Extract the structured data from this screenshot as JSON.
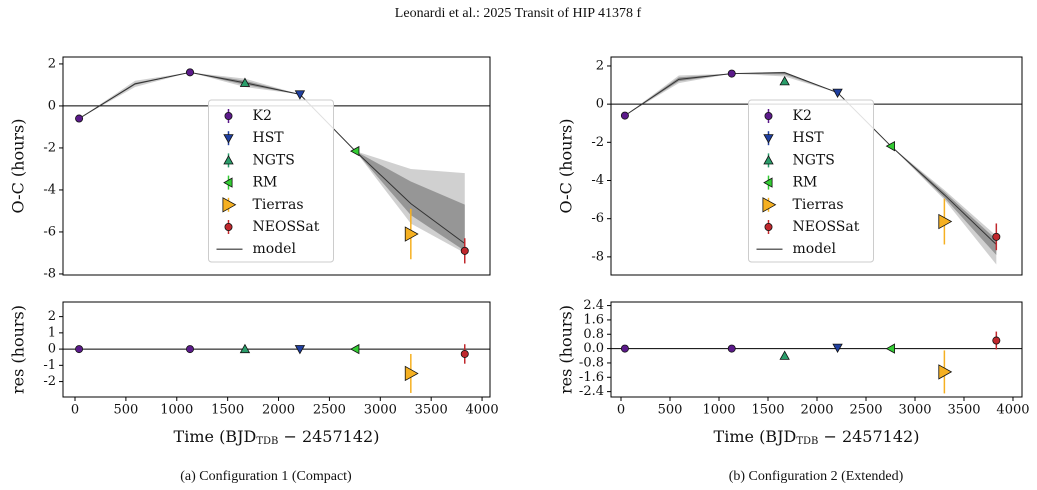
{
  "header": {
    "title": "Leonardi et al.: 2025 Transit of HIP 41378 f"
  },
  "captions": [
    "(a) Configuration 1 (Compact)",
    "(b) Configuration 2 (Extended)"
  ],
  "chart_data": [
    {
      "type": "scatter",
      "ylabel": "O-C (hours)",
      "xlim": [
        -118,
        4078
      ],
      "ylim": [
        -8.05,
        2.33
      ],
      "yticks": [
        -8,
        -6,
        -4,
        -2,
        0,
        2
      ],
      "hline": 0,
      "legend": "center",
      "bands": [
        {
          "color": "#c8c8c8",
          "x": [
            40,
            590,
            1130,
            1670,
            2210,
            2755,
            3300,
            3830
          ],
          "lower": [
            -0.6,
            0.9,
            1.6,
            0.9,
            0.55,
            -2.15,
            -5.6,
            -7.0
          ],
          "upper": [
            -0.6,
            1.2,
            1.6,
            1.3,
            0.55,
            -2.15,
            -3.0,
            -3.2
          ]
        },
        {
          "color": "#8c8c8c",
          "x": [
            40,
            590,
            1130,
            1670,
            2210,
            2755,
            3300,
            3830
          ],
          "lower": [
            -0.6,
            1.0,
            1.6,
            1.0,
            0.55,
            -2.15,
            -5.2,
            -6.9
          ],
          "upper": [
            -0.6,
            1.1,
            1.6,
            1.2,
            0.55,
            -2.15,
            -3.6,
            -4.7
          ]
        }
      ],
      "model": {
        "name": "model",
        "color": "#333333",
        "x": [
          40,
          590,
          1130,
          1670,
          2210,
          2755,
          3300,
          3830
        ],
        "values": [
          -0.6,
          1.05,
          1.6,
          1.1,
          0.55,
          -2.15,
          -4.65,
          -6.55
        ]
      },
      "series": [
        {
          "name": "K2",
          "color": "#5b1a8a",
          "marker": "o",
          "x": [
            40,
            1130
          ],
          "values": [
            -0.6,
            1.6
          ],
          "errors": [
            0.05,
            0.05
          ]
        },
        {
          "name": "HST",
          "color": "#1f3fa0",
          "marker": "v",
          "x": [
            2210
          ],
          "values": [
            0.55
          ],
          "errors": [
            0.05
          ]
        },
        {
          "name": "NGTS",
          "color": "#2a9d6a",
          "marker": "^",
          "x": [
            1670
          ],
          "values": [
            1.1
          ],
          "errors": [
            0.05
          ]
        },
        {
          "name": "RM",
          "color": "#33cc33",
          "marker": "<",
          "x": [
            2755
          ],
          "values": [
            -2.15
          ],
          "errors": [
            0.05
          ]
        },
        {
          "name": "Tierras",
          "color": "#f5b021",
          "marker": ">",
          "x": [
            3300
          ],
          "values": [
            -6.1
          ],
          "errors": [
            1.2
          ]
        },
        {
          "name": "NEOSSat",
          "color": "#c0282d",
          "marker": "o",
          "x": [
            3830
          ],
          "values": [
            -6.9
          ],
          "errors": [
            0.6
          ]
        }
      ]
    },
    {
      "type": "scatter",
      "ylabel": "res (hours)",
      "xlabel": [
        "Time (BJD",
        "TDB",
        " − 2457142)"
      ],
      "xlim": [
        -118,
        4078
      ],
      "ylim": [
        -2.95,
        2.9
      ],
      "yticks": [
        -2,
        -1,
        0,
        1,
        2
      ],
      "xticks": [
        0,
        500,
        1000,
        1500,
        2000,
        2500,
        3000,
        3500,
        4000
      ],
      "hline": 0,
      "series": [
        {
          "color": "#5b1a8a",
          "marker": "o",
          "x": [
            40,
            1130
          ],
          "values": [
            0,
            0
          ],
          "errors": [
            0.05,
            0.05
          ]
        },
        {
          "color": "#1f3fa0",
          "marker": "v",
          "x": [
            2210
          ],
          "values": [
            0
          ],
          "errors": [
            0.05
          ]
        },
        {
          "color": "#2a9d6a",
          "marker": "^",
          "x": [
            1670
          ],
          "values": [
            0
          ],
          "errors": [
            0.05
          ]
        },
        {
          "color": "#33cc33",
          "marker": "<",
          "x": [
            2755
          ],
          "values": [
            0
          ],
          "errors": [
            0.05
          ]
        },
        {
          "color": "#f5b021",
          "marker": ">",
          "x": [
            3300
          ],
          "values": [
            -1.5
          ],
          "errors": [
            1.2
          ]
        },
        {
          "color": "#c0282d",
          "marker": "o",
          "x": [
            3830
          ],
          "values": [
            -0.3
          ],
          "errors": [
            0.6
          ]
        }
      ]
    },
    {
      "type": "scatter",
      "ylabel": "O-C (hours)",
      "xlim": [
        -102,
        4092
      ],
      "ylim": [
        -8.95,
        2.47
      ],
      "yticks": [
        -8,
        -6,
        -4,
        -2,
        0,
        2
      ],
      "hline": 0,
      "legend": "center",
      "bands": [
        {
          "color": "#c8c8c8",
          "x": [
            40,
            590,
            1130,
            1670,
            2210,
            2755,
            3300,
            3830
          ],
          "lower": [
            -0.6,
            1.1,
            1.6,
            1.45,
            0.6,
            -2.2,
            -5.0,
            -8.4
          ],
          "upper": [
            -0.6,
            1.5,
            1.6,
            1.7,
            0.6,
            -2.2,
            -4.5,
            -6.9
          ]
        },
        {
          "color": "#8c8c8c",
          "x": [
            40,
            590,
            1130,
            1670,
            2210,
            2755,
            3300,
            3830
          ],
          "lower": [
            -0.6,
            1.2,
            1.6,
            1.55,
            0.6,
            -2.2,
            -4.9,
            -7.9
          ],
          "upper": [
            -0.6,
            1.4,
            1.6,
            1.68,
            0.6,
            -2.2,
            -4.6,
            -7.1
          ]
        }
      ],
      "model": {
        "name": "model",
        "color": "#333333",
        "x": [
          40,
          590,
          1130,
          1670,
          2210,
          2755,
          3300,
          3830
        ],
        "values": [
          -0.6,
          1.3,
          1.6,
          1.65,
          0.6,
          -2.2,
          -4.75,
          -7.35
        ]
      },
      "series": [
        {
          "name": "K2",
          "color": "#5b1a8a",
          "marker": "o",
          "x": [
            40,
            1130
          ],
          "values": [
            -0.6,
            1.6
          ],
          "errors": [
            0.05,
            0.05
          ]
        },
        {
          "name": "HST",
          "color": "#1f3fa0",
          "marker": "v",
          "x": [
            2210
          ],
          "values": [
            0.6
          ],
          "errors": [
            0.05
          ]
        },
        {
          "name": "NGTS",
          "color": "#2a9d6a",
          "marker": "^",
          "x": [
            1670
          ],
          "values": [
            1.2
          ],
          "errors": [
            0.05
          ]
        },
        {
          "name": "RM",
          "color": "#33cc33",
          "marker": "<",
          "x": [
            2755
          ],
          "values": [
            -2.2
          ],
          "errors": [
            0.05
          ]
        },
        {
          "name": "Tierras",
          "color": "#f5b021",
          "marker": ">",
          "x": [
            3300
          ],
          "values": [
            -6.15
          ],
          "errors": [
            1.2
          ]
        },
        {
          "name": "NEOSSat",
          "color": "#c0282d",
          "marker": "o",
          "x": [
            3830
          ],
          "values": [
            -6.95
          ],
          "errors": [
            0.7
          ]
        }
      ]
    },
    {
      "type": "scatter",
      "ylabel": "res (hours)",
      "xlabel": [
        "Time (BJD",
        "TDB",
        " − 2457142)"
      ],
      "xlim": [
        -102,
        4092
      ],
      "ylim": [
        -2.7,
        2.6
      ],
      "yticks": [
        -2.4,
        -1.6,
        -0.8,
        {
          "value": 0,
          "label": "0.0"
        },
        0.8,
        1.6,
        2.4
      ],
      "xticks": [
        0,
        500,
        1000,
        1500,
        2000,
        2500,
        3000,
        3500,
        4000
      ],
      "hline": 0,
      "series": [
        {
          "color": "#5b1a8a",
          "marker": "o",
          "x": [
            40,
            1130
          ],
          "values": [
            0,
            0
          ],
          "errors": [
            0.05,
            0.05
          ]
        },
        {
          "color": "#1f3fa0",
          "marker": "v",
          "x": [
            2210
          ],
          "values": [
            0.05
          ],
          "errors": [
            0.05
          ]
        },
        {
          "color": "#2a9d6a",
          "marker": "^",
          "x": [
            1670
          ],
          "values": [
            -0.4
          ],
          "errors": [
            0.05
          ]
        },
        {
          "color": "#33cc33",
          "marker": "<",
          "x": [
            2755
          ],
          "values": [
            0
          ],
          "errors": [
            0.05
          ]
        },
        {
          "color": "#f5b021",
          "marker": ">",
          "x": [
            3300
          ],
          "values": [
            -1.3
          ],
          "errors": [
            1.2
          ]
        },
        {
          "color": "#c0282d",
          "marker": "o",
          "x": [
            3830
          ],
          "values": [
            0.45
          ],
          "errors": [
            0.5
          ]
        }
      ]
    }
  ]
}
